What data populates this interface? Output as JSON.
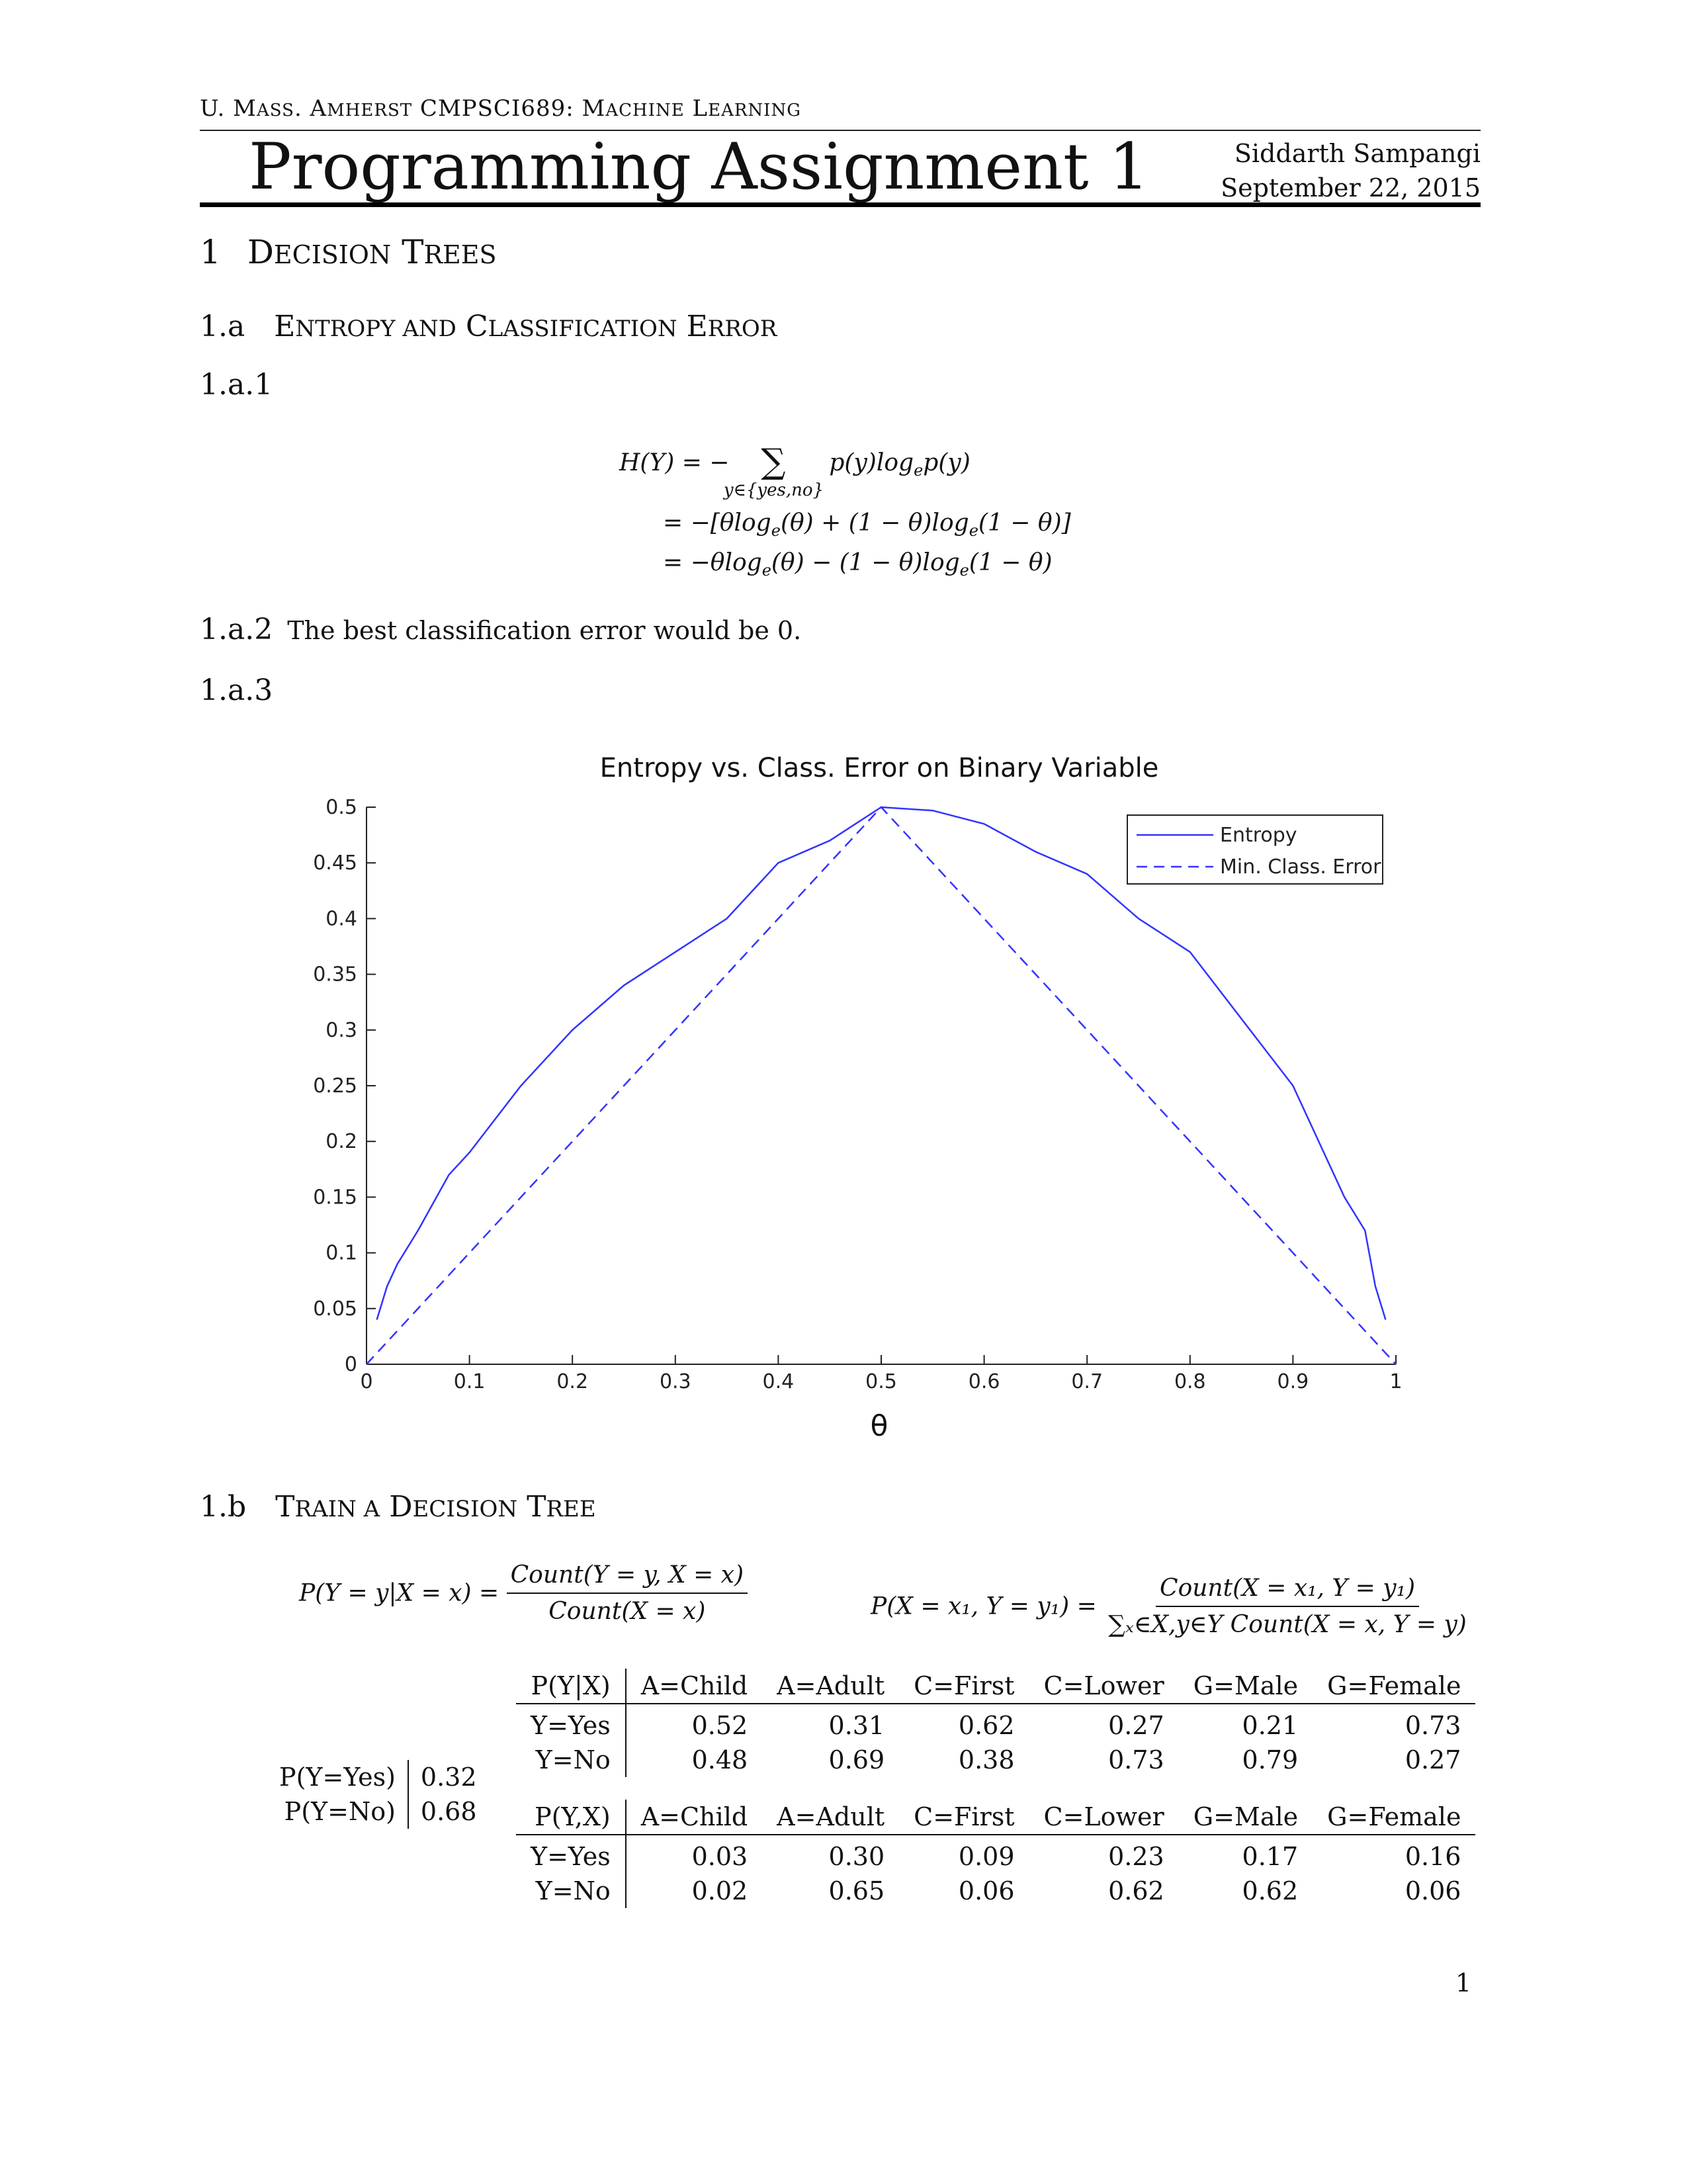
{
  "header": {
    "course_prefix_u": "U",
    "course_prefix_rest": ". M",
    "course_mass_rest": "ASS",
    "course_amherst_a": ". A",
    "course_amherst_rest": "MHERST",
    "course_code": " CMPSCI689: M",
    "course_machine_rest": "ACHINE",
    "course_learning_l": " L",
    "course_learning_rest": "EARNING",
    "title": "Programming Assignment 1",
    "author": "Siddarth Sampangi",
    "date": "September 22, 2015"
  },
  "sections": {
    "s1_num": "1",
    "s1_title_a": "D",
    "s1_title_b": "ECISION",
    "s1_title_c": " T",
    "s1_title_d": "REES",
    "s1a_num": "1.a",
    "s1a_title_a": "E",
    "s1a_title_b": "NTROPY AND",
    "s1a_title_c": " C",
    "s1a_title_d": "LASSIFICATION",
    "s1a_title_e": " E",
    "s1a_title_f": "RROR",
    "s1a1": "1.a.1",
    "s1a2": "1.a.2",
    "s1a2_text": "The best classification error would be 0.",
    "s1a3": "1.a.3",
    "s1b_num": "1.b",
    "s1b_title_a": "T",
    "s1b_title_b": "RAIN A",
    "s1b_title_c": " D",
    "s1b_title_d": "ECISION",
    "s1b_title_e": " T",
    "s1b_title_f": "REE"
  },
  "equations": {
    "entropy_lhs": "H(Y) = −",
    "entropy_sum": "∑",
    "entropy_sub": "y∈{yes,no}",
    "entropy_term": "p(y)log",
    "entropy_term_e": "e",
    "entropy_term_end": "p(y)",
    "line2": "= −[θlog",
    "line2_e1": "e",
    "line2_mid": "(θ) + (1 − θ)log",
    "line2_e2": "e",
    "line2_end": "(1 − θ)]",
    "line3": "= −θlog",
    "line3_e1": "e",
    "line3_mid": "(θ) − (1 − θ)log",
    "line3_e2": "e",
    "line3_end": "(1 − θ)",
    "cond_lhs": "P(Y = y|X = x) =",
    "cond_num": "Count(Y = y, X = x)",
    "cond_den": "Count(X = x)",
    "joint_lhs": "P(X = x₁, Y = y₁) =",
    "joint_num": "Count(X = x₁, Y = y₁)",
    "joint_den": "∑ₓ∈X,y∈Y Count(X = x, Y = y)"
  },
  "chart_data": {
    "type": "line",
    "title": "Entropy vs. Class. Error on Binary Variable",
    "xlabel": "θ",
    "ylabel": "",
    "xlim": [
      0,
      1
    ],
    "ylim": [
      0,
      0.5
    ],
    "xticks": [
      "0",
      "0.1",
      "0.2",
      "0.3",
      "0.4",
      "0.5",
      "0.6",
      "0.7",
      "0.8",
      "0.9",
      "1"
    ],
    "yticks": [
      "0",
      "0.05",
      "0.1",
      "0.15",
      "0.2",
      "0.25",
      "0.3",
      "0.35",
      "0.4",
      "0.45",
      "0.5"
    ],
    "legend_position": "top-right",
    "series": [
      {
        "name": "Entropy",
        "style": "solid",
        "color": "#3333ff",
        "x": [
          0.01,
          0.02,
          0.03,
          0.05,
          0.08,
          0.1,
          0.15,
          0.2,
          0.25,
          0.3,
          0.35,
          0.4,
          0.45,
          0.5,
          0.55,
          0.6,
          0.65,
          0.7,
          0.75,
          0.8,
          0.85,
          0.9,
          0.92,
          0.95,
          0.97,
          0.98,
          0.99
        ],
        "y": [
          0.04,
          0.07,
          0.09,
          0.12,
          0.17,
          0.19,
          0.25,
          0.3,
          0.34,
          0.37,
          0.4,
          0.45,
          0.47,
          0.5,
          0.497,
          0.485,
          0.46,
          0.44,
          0.4,
          0.37,
          0.31,
          0.25,
          0.21,
          0.15,
          0.12,
          0.07,
          0.04
        ]
      },
      {
        "name": "Min. Class. Error",
        "style": "dashed",
        "color": "#3333ff",
        "x": [
          0,
          0.5,
          1
        ],
        "y": [
          0,
          0.5,
          0
        ]
      }
    ]
  },
  "prior_table": {
    "rows": [
      {
        "label": "P(Y=Yes)",
        "value": "0.32"
      },
      {
        "label": "P(Y=No)",
        "value": "0.68"
      }
    ]
  },
  "cond_table": {
    "header": [
      "P(Y|X)",
      "A=Child",
      "A=Adult",
      "C=First",
      "C=Lower",
      "G=Male",
      "G=Female"
    ],
    "rows": [
      [
        "Y=Yes",
        "0.52",
        "0.31",
        "0.62",
        "0.27",
        "0.21",
        "0.73"
      ],
      [
        "Y=No",
        "0.48",
        "0.69",
        "0.38",
        "0.73",
        "0.79",
        "0.27"
      ]
    ]
  },
  "joint_table": {
    "header": [
      "P(Y,X)",
      "A=Child",
      "A=Adult",
      "C=First",
      "C=Lower",
      "G=Male",
      "G=Female"
    ],
    "rows": [
      [
        "Y=Yes",
        "0.03",
        "0.30",
        "0.09",
        "0.23",
        "0.17",
        "0.16"
      ],
      [
        "Y=No",
        "0.02",
        "0.65",
        "0.06",
        "0.62",
        "0.62",
        "0.06"
      ]
    ]
  },
  "page_number": "1"
}
